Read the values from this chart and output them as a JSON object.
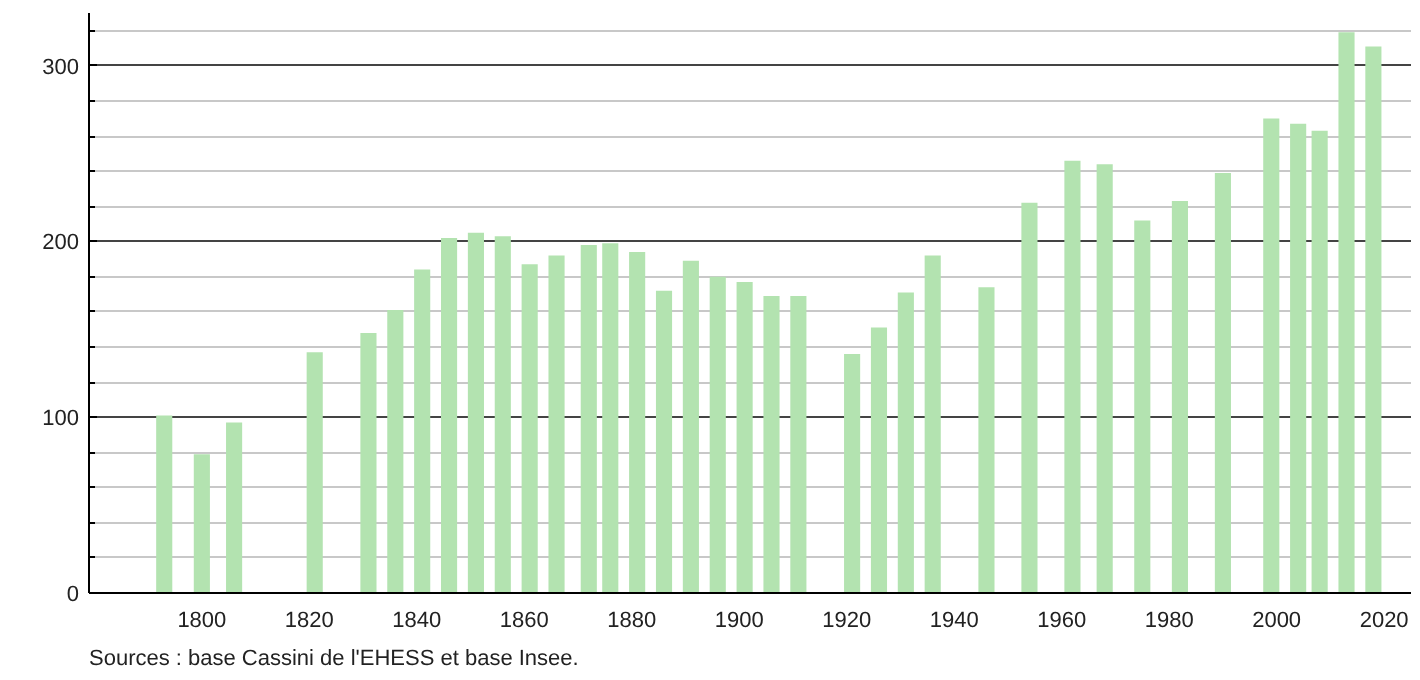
{
  "chart_data": {
    "type": "bar",
    "x": [
      1793,
      1800,
      1806,
      1821,
      1831,
      1836,
      1841,
      1846,
      1851,
      1856,
      1861,
      1866,
      1872,
      1876,
      1881,
      1886,
      1891,
      1896,
      1901,
      1906,
      1911,
      1921,
      1926,
      1931,
      1936,
      1946,
      1954,
      1962,
      1968,
      1975,
      1982,
      1990,
      1999,
      2004,
      2008,
      2013,
      2018
    ],
    "values": [
      101,
      79,
      97,
      137,
      148,
      161,
      184,
      202,
      205,
      203,
      187,
      192,
      198,
      199,
      194,
      172,
      189,
      180,
      177,
      169,
      169,
      136,
      151,
      171,
      192,
      174,
      222,
      246,
      244,
      212,
      223,
      239,
      270,
      267,
      263,
      319,
      311
    ],
    "color": "#b3e3b0",
    "xlim": [
      1779,
      2025
    ],
    "xticks": [
      1800,
      1820,
      1840,
      1860,
      1880,
      1900,
      1920,
      1940,
      1960,
      1980,
      2000,
      2020
    ],
    "ylim": [
      0,
      330
    ],
    "yticks": [
      0,
      {
        "value": 20,
        "label": null
      },
      {
        "value": 40,
        "label": null
      },
      {
        "value": 60,
        "label": null
      },
      {
        "value": 80,
        "label": null
      },
      100,
      {
        "value": 120,
        "label": null
      },
      {
        "value": 140,
        "label": null
      },
      {
        "value": 160,
        "label": null
      },
      {
        "value": 180,
        "label": null
      },
      200,
      {
        "value": 220,
        "label": null
      },
      {
        "value": 240,
        "label": null
      },
      {
        "value": 260,
        "label": null
      },
      {
        "value": 280,
        "label": null
      },
      300,
      {
        "value": 320,
        "label": null
      }
    ],
    "grid": "y",
    "annotations": [
      "Sources : base Cassini de l'EHESS et base Insee."
    ]
  }
}
